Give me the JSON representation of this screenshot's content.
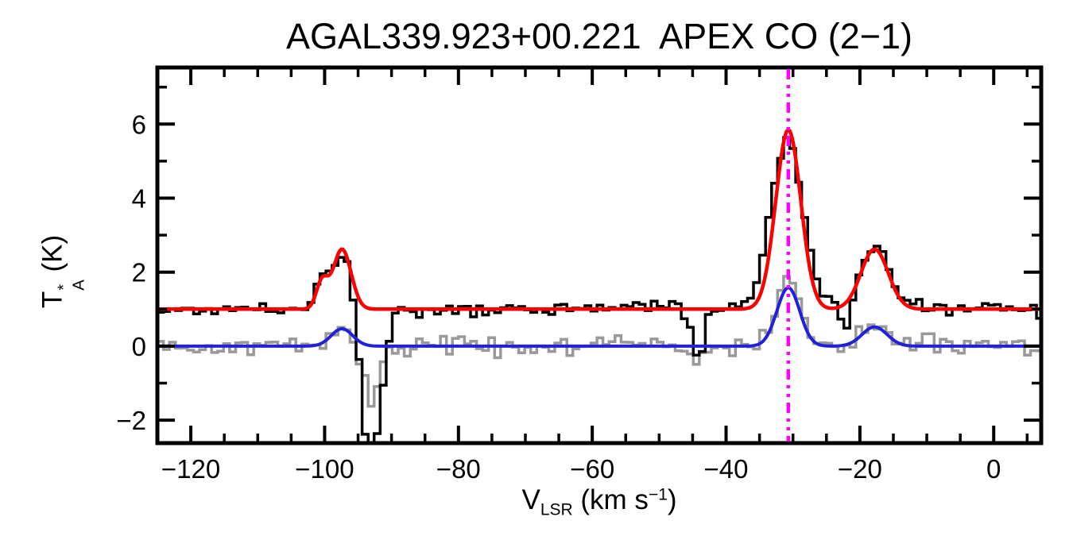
{
  "chart_data": {
    "type": "line",
    "title": "AGAL339.923+00.221  APEX CO (2−1)",
    "xlabel": "V_LSR (km s^-1)",
    "ylabel": "T_A^* (K)",
    "xlabel_parts": {
      "base": "V",
      "sub": "LSR",
      "unit": " (km s",
      "exp": "−1",
      "close": ")"
    },
    "ylabel_parts": {
      "base": "T",
      "sup": "*",
      "sub": "A",
      "unit": " (K)"
    },
    "xlim": [
      -125.0,
      7.1
    ],
    "ylim": [
      -2.62,
      7.53
    ],
    "grid": false,
    "legend": "none",
    "x_major_ticks": [
      -120,
      -100,
      -80,
      -60,
      -40,
      -20,
      0
    ],
    "x_tick_labels": [
      "−120",
      "−100",
      "−80",
      "−60",
      "−40",
      "−20",
      "0"
    ],
    "x_minor_step": 5,
    "y_major_ticks": [
      -2,
      0,
      2,
      4,
      6
    ],
    "y_tick_labels": [
      "−2",
      "0",
      "2",
      "4",
      "6"
    ],
    "y_minor_step": 1,
    "channel_width_kms": 0.9,
    "axis_color": "#000000",
    "marker_line": {
      "velocity": -30.7,
      "color": "#ff00ff",
      "style": "dash-dot-dot"
    },
    "series": [
      {
        "name": "second-spectrum",
        "color": "#999999",
        "style": "histogram",
        "baseline": 0.0,
        "noise_sigma": 0.13,
        "seed": 42,
        "gaussians": [
          {
            "v": -97.4,
            "amp": 0.45,
            "fwhm": 3.6
          },
          {
            "v": -93.0,
            "amp": -1.45,
            "fwhm": 2.6
          },
          {
            "v": -44.2,
            "amp": -0.55,
            "fwhm": 1.6
          },
          {
            "v": -30.7,
            "amp": 1.85,
            "fwhm": 4.2
          },
          {
            "v": -17.8,
            "amp": 0.6,
            "fwhm": 4.4
          }
        ]
      },
      {
        "name": "observed-spectrum-offset",
        "color": "#000000",
        "style": "histogram",
        "baseline": 1.0,
        "noise_sigma": 0.11,
        "seed": 17,
        "gaussians": [
          {
            "v": -100.4,
            "amp": 0.72,
            "fwhm": 2.2
          },
          {
            "v": -97.4,
            "amp": 1.62,
            "fwhm": 3.4
          },
          {
            "v": -93.0,
            "amp": -4.3,
            "fwhm": 3.2
          },
          {
            "v": -44.2,
            "amp": -1.6,
            "fwhm": 1.6
          },
          {
            "v": -30.9,
            "amp": 4.55,
            "fwhm": 5.6
          },
          {
            "v": -22.0,
            "amp": -0.85,
            "fwhm": 1.6
          },
          {
            "v": -17.8,
            "amp": 1.7,
            "fwhm": 5.0
          }
        ]
      },
      {
        "name": "gauss-fit",
        "color": "#2020dd",
        "style": "line",
        "baseline": 0.0,
        "noise_sigma": 0,
        "seed": 0,
        "gaussians": [
          {
            "v": -97.4,
            "amp": 0.47,
            "fwhm": 3.8
          },
          {
            "v": -30.7,
            "amp": 1.58,
            "fwhm": 4.0
          },
          {
            "v": -17.8,
            "amp": 0.52,
            "fwhm": 4.4
          }
        ]
      },
      {
        "name": "gauss-fit-offset",
        "color": "#ff0000",
        "style": "line",
        "baseline": 1.0,
        "noise_sigma": 0,
        "seed": 0,
        "gaussians": [
          {
            "v": -100.4,
            "amp": 0.72,
            "fwhm": 2.0
          },
          {
            "v": -97.4,
            "amp": 1.62,
            "fwhm": 3.2
          },
          {
            "v": -30.7,
            "amp": 4.85,
            "fwhm": 4.4
          },
          {
            "v": -17.8,
            "amp": 1.62,
            "fwhm": 4.8
          }
        ]
      }
    ]
  }
}
